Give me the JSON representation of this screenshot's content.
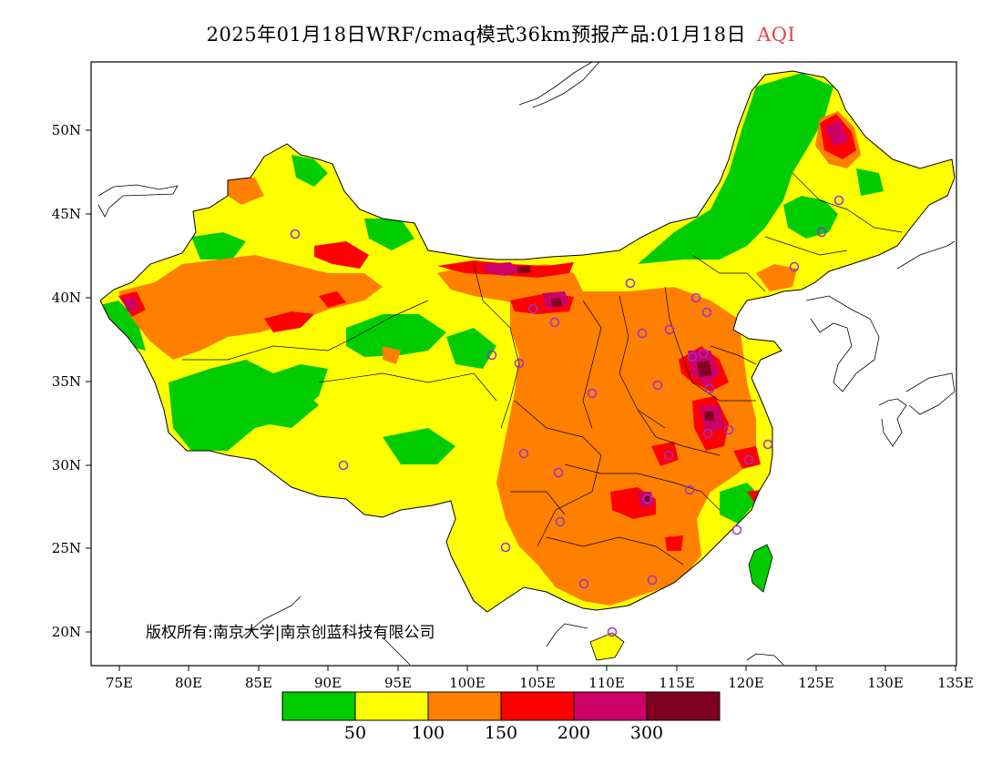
{
  "header": {
    "title": "2025年01月18日WRF/cmaq模式36km预报产品:01月18日",
    "variable": "AQI"
  },
  "map": {
    "lon_ticks": [
      "75E",
      "80E",
      "85E",
      "90E",
      "95E",
      "100E",
      "105E",
      "110E",
      "115E",
      "120E",
      "125E",
      "130E",
      "135E"
    ],
    "lat_ticks": [
      "20N",
      "25N",
      "30N",
      "35N",
      "40N",
      "45N",
      "50N"
    ],
    "copyright": "版权所有:南京大学|南京创蓝科技有限公司"
  },
  "legend": {
    "colors": [
      "#00cc00",
      "#ffff00",
      "#ff8000",
      "#ff0000",
      "#cc0066",
      "#800020"
    ],
    "labels": [
      "50",
      "100",
      "150",
      "200",
      "300"
    ]
  }
}
